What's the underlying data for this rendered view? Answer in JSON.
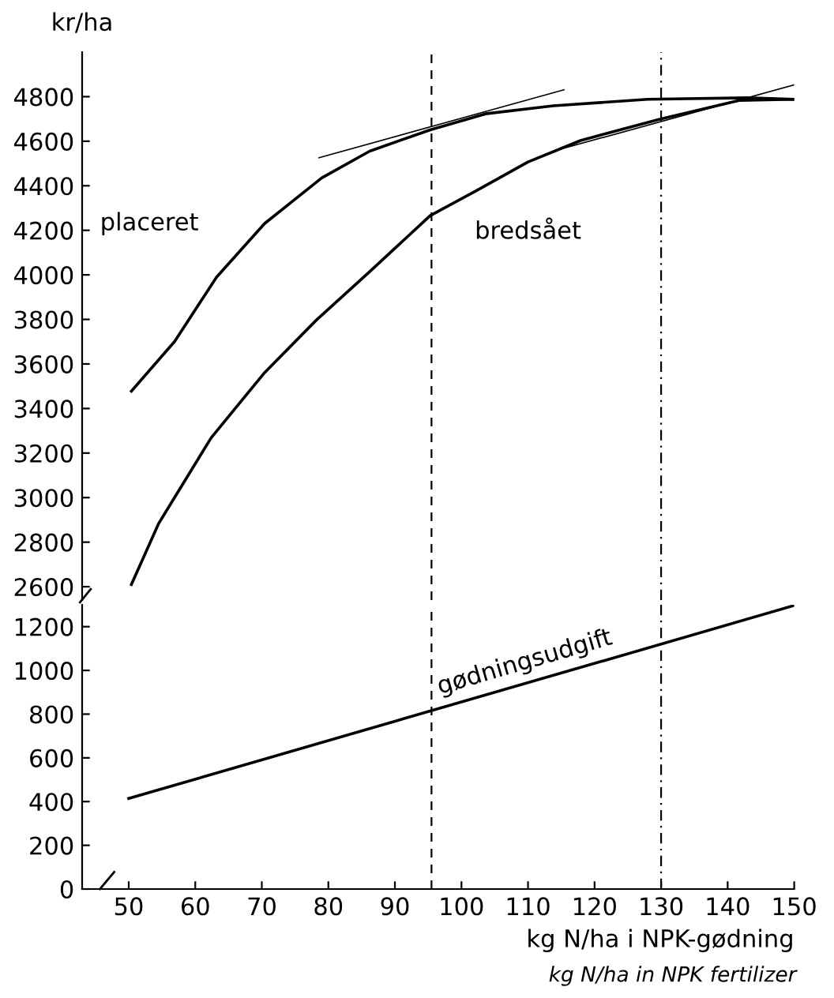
{
  "chart_data": [
    {
      "type": "line",
      "ylabel": "kr/ha",
      "xlim": [
        43,
        150
      ],
      "ylim": [
        2540,
        5000
      ],
      "yticks": [
        2600,
        2800,
        3000,
        3200,
        3400,
        3600,
        3800,
        4000,
        4200,
        4400,
        4600,
        4800
      ],
      "tick_labels": "y",
      "grid": false,
      "marker": "none",
      "line_style": "solid",
      "series": [
        {
          "name": "placeret",
          "color": "#000000",
          "x": [
            50.4,
            56.9,
            63.2,
            70.4,
            79,
            86.2,
            95.3,
            103.6,
            113.8,
            128,
            143,
            150
          ],
          "values": [
            3478,
            3701,
            3990,
            4230,
            4435,
            4555,
            4651,
            4723,
            4759,
            4788,
            4795,
            4788
          ]
        },
        {
          "name": "bredsået",
          "color": "#000000",
          "x": [
            50.4,
            54.5,
            62.4,
            70.3,
            78.2,
            86.2,
            95.3,
            102,
            110,
            117.9,
            129.8,
            141.7,
            150
          ],
          "values": [
            2610,
            2884,
            3269,
            3557,
            3797,
            4014,
            4266,
            4374,
            4507,
            4603,
            4699,
            4783,
            4788
          ]
        },
        {
          "color": "#000000",
          "x": [
            78.6,
            115.4
          ],
          "values": [
            4526,
            4831
          ]
        },
        {
          "color": "#000000",
          "x": [
            114.6,
            150
          ],
          "values": [
            4562,
            4853
          ]
        }
      ],
      "ref_lines": [
        {
          "axis": "x",
          "value": 95.5,
          "line_style": "dashed",
          "color": "#000000"
        },
        {
          "axis": "x",
          "value": 130,
          "line_style": "dotted",
          "color": "#000000"
        }
      ]
    },
    {
      "type": "line",
      "xlabel": "kg N/ha i NPK-gødning",
      "xlim": [
        43,
        150
      ],
      "xticks": [
        50,
        60,
        70,
        80,
        90,
        100,
        110,
        120,
        130,
        140,
        150
      ],
      "ylim": [
        0,
        1300
      ],
      "yticks": [
        0,
        200,
        400,
        600,
        800,
        1000,
        1200
      ],
      "grid": false,
      "marker": "none",
      "line_style": "solid",
      "series": [
        {
          "name": "gødningsudgift",
          "color": "#000000",
          "x": [
            50,
            150
          ],
          "values": [
            414,
            1297
          ]
        }
      ],
      "ref_lines": [
        {
          "axis": "x",
          "value": 95.5,
          "line_style": "dashed",
          "color": "#000000"
        },
        {
          "axis": "x",
          "value": 130,
          "line_style": "dotted",
          "color": "#000000"
        }
      ],
      "annotations": [
        "kg N/ha in NPK fertilizer"
      ]
    }
  ]
}
